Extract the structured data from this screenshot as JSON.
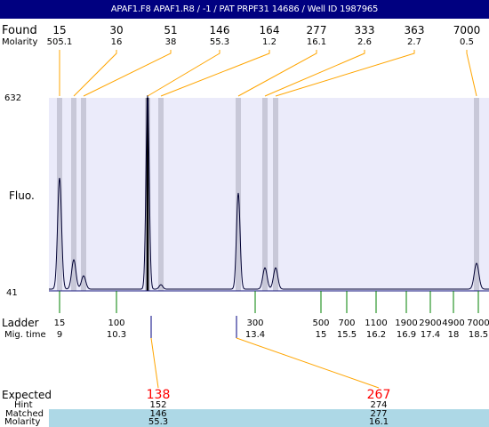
{
  "header": {
    "title": "APAF1.F8  APAF1.R8 / -1  / PAT PRPF31 14686 / Well ID 1987965"
  },
  "labels": {
    "found": "Found",
    "molarity": "Molarity",
    "fluo": "Fluo.",
    "ymax": "632",
    "ymin": "41",
    "ladder": "Ladder",
    "mig_time": "Mig. time",
    "expected": "Expected",
    "hint": "Hint",
    "matched": "Matched",
    "molarity2": "Molarity"
  },
  "found_peaks": [
    {
      "size": "15",
      "molarity": "505.1"
    },
    {
      "size": "30",
      "molarity": "16"
    },
    {
      "size": "51",
      "molarity": "38"
    },
    {
      "size": "146",
      "molarity": "55.3"
    },
    {
      "size": "164",
      "molarity": "1.2"
    },
    {
      "size": "277",
      "molarity": "16.1"
    },
    {
      "size": "333",
      "molarity": "2.6"
    },
    {
      "size": "363",
      "molarity": "2.7"
    },
    {
      "size": "7000",
      "molarity": "0.5"
    }
  ],
  "ladder": [
    {
      "size": "15",
      "time": "9"
    },
    {
      "size": "100",
      "time": "10.3"
    },
    {
      "size": "300",
      "time": "13.4"
    },
    {
      "size": "500",
      "time": "15"
    },
    {
      "size": "700",
      "time": "15.5"
    },
    {
      "size": "1100",
      "time": "16.2"
    },
    {
      "size": "1900",
      "time": "16.9"
    },
    {
      "size": "2900",
      "time": "17.4"
    },
    {
      "size": "4900",
      "time": "18"
    },
    {
      "size": "7000",
      "time": "18.5"
    }
  ],
  "expected": [
    {
      "expected": "138",
      "hint": "152",
      "matched": "146",
      "molarity": "55.3"
    },
    {
      "expected": "267",
      "hint": "274",
      "matched": "277",
      "molarity": "16.1"
    }
  ],
  "colors": {
    "header_bg": "#000080",
    "plot_bg": "#ebebfa",
    "band": "#c8c8d8",
    "connector": "#ffa500",
    "trace": "#000033",
    "ladder_tick": "#008000",
    "expected_text": "#ff0000",
    "matched_bg": "#add8e6"
  }
}
